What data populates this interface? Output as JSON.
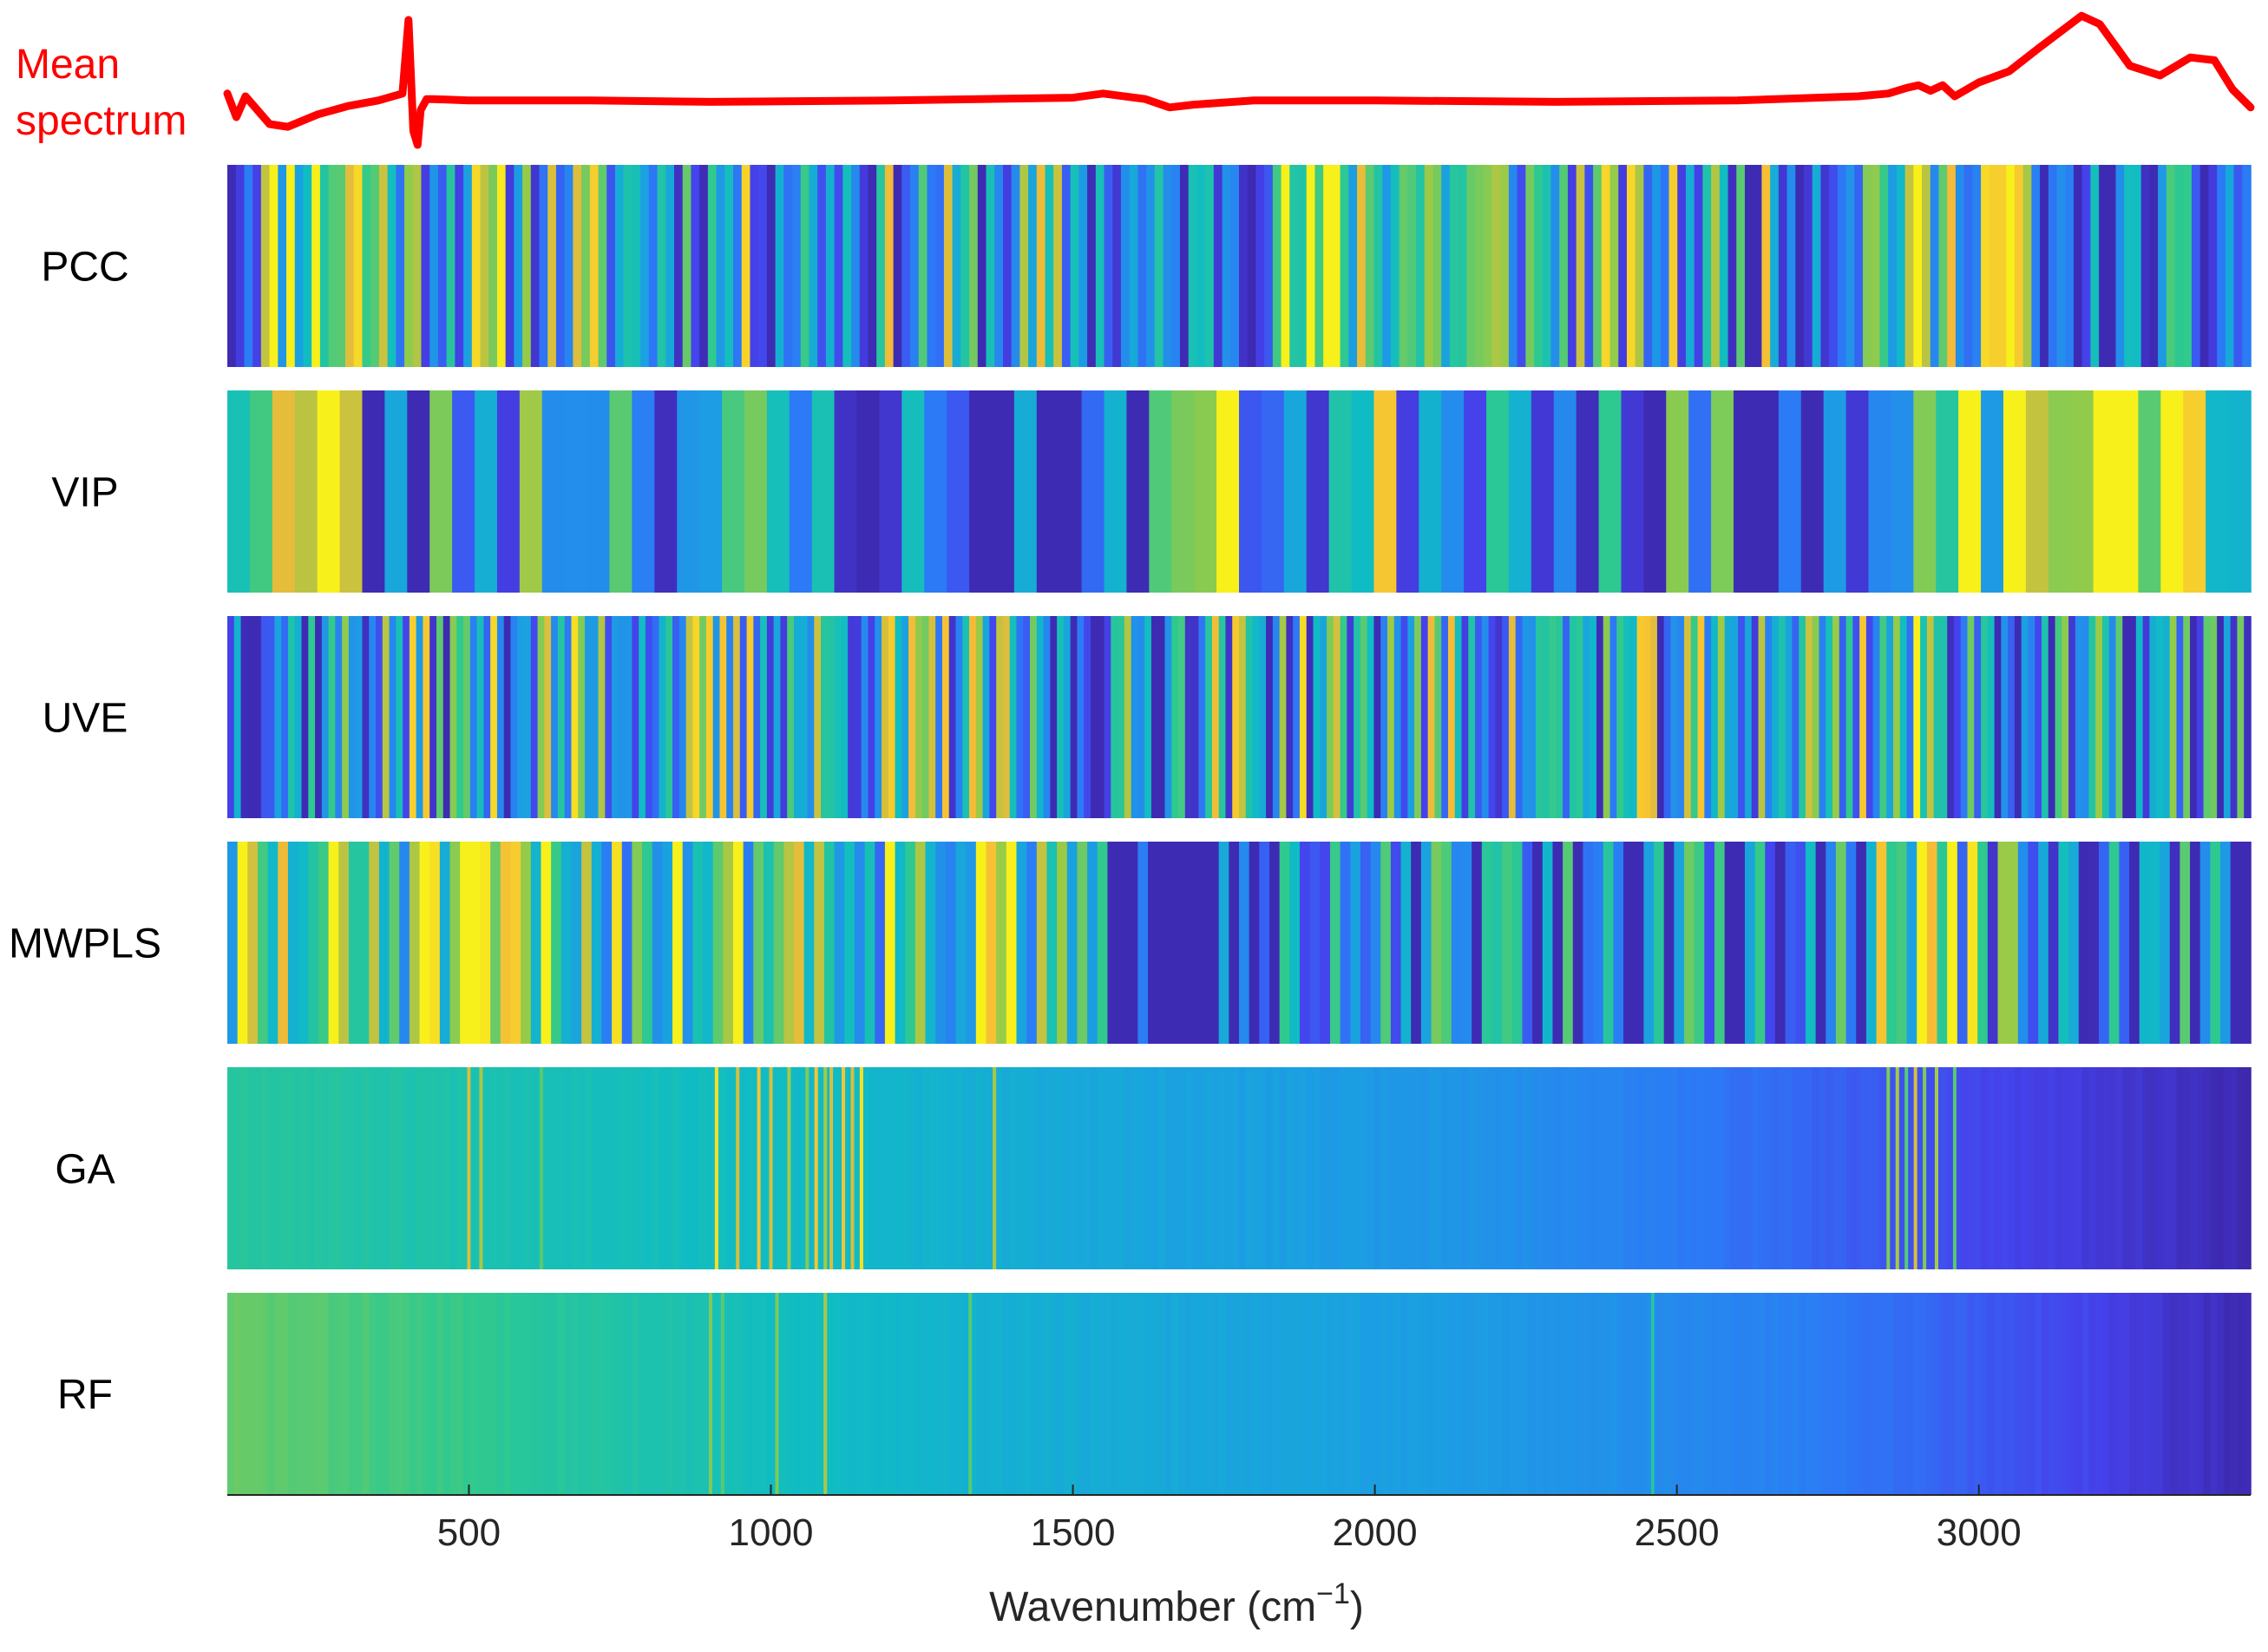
{
  "chart_data": {
    "type": "heatmap",
    "spectrum_label": [
      "Mean",
      "spectrum"
    ],
    "spectrum_color": "#ff0000",
    "xlabel_main": "Wavenumber (cm",
    "xlabel_sup": "−1",
    "xlabel_close": ")",
    "xlim": [
      100,
      3450
    ],
    "x_ticks": [
      500,
      1000,
      1500,
      2000,
      2500,
      3000
    ],
    "mean_spectrum": {
      "x": [
        100,
        115,
        130,
        150,
        170,
        200,
        250,
        300,
        350,
        390,
        400,
        408,
        415,
        420,
        430,
        440,
        500,
        700,
        900,
        1200,
        1500,
        1550,
        1620,
        1660,
        1700,
        1800,
        2000,
        2300,
        2600,
        2800,
        2850,
        2880,
        2900,
        2920,
        2940,
        2960,
        2980,
        3000,
        3050,
        3100,
        3170,
        3200,
        3250,
        3300,
        3350,
        3390,
        3420,
        3450
      ],
      "y": [
        0.42,
        0.25,
        0.4,
        0.3,
        0.2,
        0.18,
        0.27,
        0.33,
        0.37,
        0.42,
        0.95,
        0.15,
        0.05,
        0.3,
        0.38,
        0.38,
        0.37,
        0.37,
        0.36,
        0.37,
        0.39,
        0.42,
        0.38,
        0.32,
        0.34,
        0.37,
        0.37,
        0.36,
        0.37,
        0.4,
        0.42,
        0.46,
        0.48,
        0.44,
        0.48,
        0.4,
        0.45,
        0.5,
        0.58,
        0.75,
        0.98,
        0.92,
        0.62,
        0.55,
        0.68,
        0.66,
        0.45,
        0.32
      ]
    },
    "heatmaps": [
      {
        "name": "PCC",
        "palette": "stripes",
        "stripe_count": 240,
        "seed": 11,
        "base": [
          [
            100,
            0.15
          ],
          [
            180,
            0.75
          ],
          [
            300,
            0.85
          ],
          [
            400,
            0.55
          ],
          [
            700,
            0.5
          ],
          [
            1000,
            0.45
          ],
          [
            1300,
            0.4
          ],
          [
            1500,
            0.45
          ],
          [
            1650,
            0.2
          ],
          [
            1800,
            0.5
          ],
          [
            1900,
            0.75
          ],
          [
            2050,
            0.7
          ],
          [
            2200,
            0.55
          ],
          [
            2500,
            0.45
          ],
          [
            2750,
            0.4
          ],
          [
            2850,
            0.7
          ],
          [
            2950,
            0.55
          ],
          [
            3050,
            0.95
          ],
          [
            3100,
            0.05
          ],
          [
            3300,
            0.2
          ],
          [
            3450,
            0.3
          ]
        ]
      },
      {
        "name": "VIP",
        "palette": "stripes",
        "stripe_count": 90,
        "seed": 23,
        "base": [
          [
            100,
            0.8
          ],
          [
            280,
            0.8
          ],
          [
            340,
            0.15
          ],
          [
            500,
            0.45
          ],
          [
            700,
            0.6
          ],
          [
            900,
            0.4
          ],
          [
            1100,
            0.3
          ],
          [
            1300,
            0.15
          ],
          [
            1500,
            0.1
          ],
          [
            1600,
            0.05
          ],
          [
            1660,
            0.85
          ],
          [
            1750,
            0.55
          ],
          [
            1900,
            0.4
          ],
          [
            2100,
            0.55
          ],
          [
            2400,
            0.45
          ],
          [
            2600,
            0.25
          ],
          [
            2800,
            0.15
          ],
          [
            2920,
            0.35
          ],
          [
            3050,
            0.9
          ],
          [
            3200,
            0.97
          ],
          [
            3400,
            0.85
          ],
          [
            3450,
            0.8
          ]
        ]
      },
      {
        "name": "UVE",
        "palette": "stripes",
        "stripe_count": 300,
        "seed": 37,
        "base": [
          [
            100,
            0.35
          ],
          [
            400,
            0.45
          ],
          [
            700,
            0.5
          ],
          [
            1000,
            0.5
          ],
          [
            1300,
            0.5
          ],
          [
            1500,
            0.25
          ],
          [
            1700,
            0.5
          ],
          [
            2000,
            0.45
          ],
          [
            2500,
            0.45
          ],
          [
            2850,
            0.55
          ],
          [
            2950,
            0.5
          ],
          [
            3100,
            0.3
          ],
          [
            3450,
            0.4
          ]
        ]
      },
      {
        "name": "MWPLS",
        "palette": "stripes",
        "stripe_count": 200,
        "seed": 51,
        "base": [
          [
            100,
            0.6
          ],
          [
            400,
            0.7
          ],
          [
            700,
            0.65
          ],
          [
            1000,
            0.75
          ],
          [
            1200,
            0.65
          ],
          [
            1450,
            0.6
          ],
          [
            1550,
            0.2
          ],
          [
            1800,
            0.15
          ],
          [
            2000,
            0.25
          ],
          [
            2300,
            0.3
          ],
          [
            2600,
            0.25
          ],
          [
            2800,
            0.3
          ],
          [
            2880,
            0.8
          ],
          [
            3000,
            0.6
          ],
          [
            3100,
            0.2
          ],
          [
            3450,
            0.25
          ]
        ]
      },
      {
        "name": "GA",
        "palette": "gradient",
        "seed": 67,
        "base": [
          [
            100,
            0.62
          ],
          [
            1150,
            0.5
          ],
          [
            1400,
            0.45
          ],
          [
            2200,
            0.35
          ],
          [
            2800,
            0.18
          ],
          [
            3450,
            0.02
          ]
        ],
        "lines": [
          [
            500,
            0.85
          ],
          [
            520,
            0.8
          ],
          [
            620,
            0.7
          ],
          [
            910,
            0.95
          ],
          [
            945,
            0.85
          ],
          [
            980,
            0.9
          ],
          [
            1000,
            0.85
          ],
          [
            1030,
            0.8
          ],
          [
            1060,
            0.75
          ],
          [
            1075,
            0.9
          ],
          [
            1090,
            0.8
          ],
          [
            1100,
            0.85
          ],
          [
            1120,
            0.9
          ],
          [
            1135,
            0.85
          ],
          [
            1150,
            0.95
          ],
          [
            1370,
            0.8
          ],
          [
            2850,
            0.75
          ],
          [
            2865,
            0.8
          ],
          [
            2880,
            0.7
          ],
          [
            2895,
            0.85
          ],
          [
            2910,
            0.75
          ],
          [
            2930,
            0.8
          ],
          [
            2960,
            0.7
          ]
        ]
      },
      {
        "name": "RF",
        "palette": "gradient",
        "seed": 83,
        "base": [
          [
            100,
            0.72
          ],
          [
            500,
            0.65
          ],
          [
            1050,
            0.52
          ],
          [
            1500,
            0.45
          ],
          [
            2200,
            0.38
          ],
          [
            2700,
            0.28
          ],
          [
            3100,
            0.15
          ],
          [
            3450,
            0.02
          ]
        ],
        "lines": [
          [
            900,
            0.75
          ],
          [
            920,
            0.7
          ],
          [
            1010,
            0.75
          ],
          [
            1090,
            0.8
          ],
          [
            1330,
            0.7
          ],
          [
            2460,
            0.6
          ]
        ]
      }
    ]
  }
}
